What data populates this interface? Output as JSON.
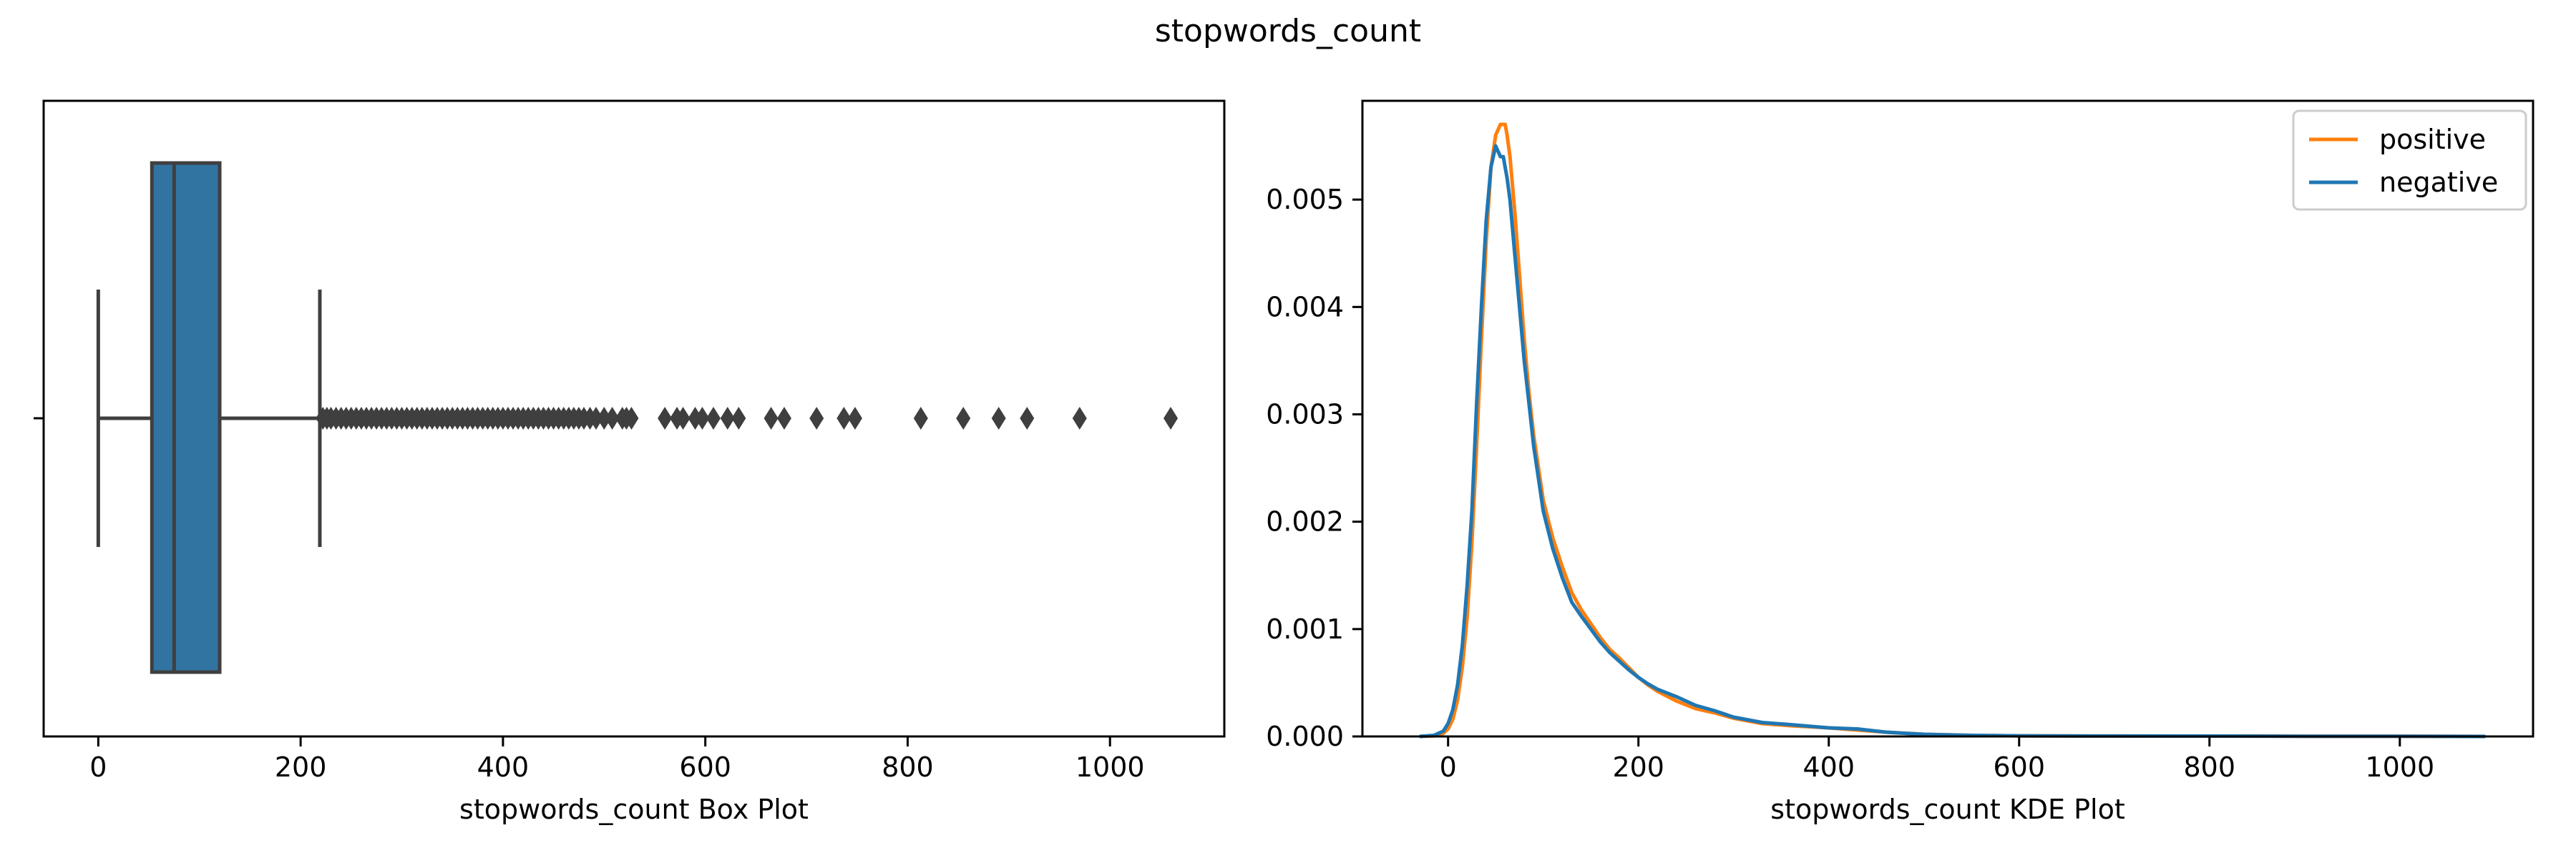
{
  "figure": {
    "title": "stopwords_count"
  },
  "chart_data": [
    {
      "type": "box",
      "title": "",
      "xlabel": "stopwords_count Box Plot",
      "ylabel": "",
      "xlim": [
        -54,
        1113
      ],
      "xticks": [
        0,
        200,
        400,
        600,
        800,
        1000
      ],
      "xtick_labels": [
        "0",
        "200",
        "400",
        "600",
        "800",
        "1000"
      ],
      "box": {
        "whisker_low": 0,
        "q1": 53,
        "median": 75,
        "q3": 120,
        "whisker_high": 219
      },
      "outliers": [
        222,
        226,
        230,
        235,
        240,
        245,
        250,
        255,
        260,
        265,
        270,
        275,
        280,
        285,
        290,
        295,
        300,
        305,
        310,
        315,
        320,
        325,
        330,
        335,
        340,
        345,
        350,
        355,
        360,
        365,
        370,
        375,
        380,
        385,
        390,
        395,
        400,
        405,
        410,
        415,
        420,
        425,
        430,
        435,
        440,
        445,
        450,
        455,
        460,
        465,
        470,
        475,
        480,
        486,
        492,
        500,
        508,
        518,
        522,
        527,
        560,
        572,
        578,
        590,
        597,
        608,
        622,
        633,
        665,
        678,
        710,
        737,
        748,
        813,
        855,
        890,
        918,
        970,
        1060
      ],
      "color": "#3274a1",
      "line_color": "#3f3f3f",
      "grid": false
    },
    {
      "type": "line",
      "title": "",
      "xlabel": "stopwords_count KDE Plot",
      "ylabel": "",
      "xlim": [
        -90,
        1140
      ],
      "ylim": [
        0,
        0.00592
      ],
      "xticks": [
        0,
        200,
        400,
        600,
        800,
        1000
      ],
      "xtick_labels": [
        "0",
        "200",
        "400",
        "600",
        "800",
        "1000"
      ],
      "yticks": [
        0,
        0.001,
        0.002,
        0.003,
        0.004,
        0.005
      ],
      "ytick_labels": [
        "0.000",
        "0.001",
        "0.002",
        "0.003",
        "0.004",
        "0.005"
      ],
      "legend_position": "top-right",
      "grid": false,
      "series": [
        {
          "name": "positive",
          "color": "#ff7f0e",
          "x": [
            -30,
            -15,
            -5,
            0,
            5,
            10,
            15,
            20,
            25,
            30,
            35,
            40,
            45,
            50,
            55,
            58,
            60,
            62,
            65,
            70,
            75,
            80,
            85,
            90,
            95,
            100,
            110,
            120,
            130,
            140,
            150,
            160,
            170,
            180,
            190,
            200,
            210,
            220,
            240,
            260,
            280,
            300,
            330,
            360,
            400,
            430,
            460,
            500,
            550,
            600,
            700,
            800,
            900,
            1000,
            1090
          ],
          "y": [
            0,
            5e-06,
            3e-05,
            7e-05,
            0.00016,
            0.00034,
            0.00065,
            0.0011,
            0.0018,
            0.0027,
            0.0037,
            0.0046,
            0.0053,
            0.0056,
            0.0057,
            0.0057,
            0.0057,
            0.0056,
            0.0054,
            0.0049,
            0.0043,
            0.0037,
            0.0032,
            0.0028,
            0.0025,
            0.0022,
            0.00185,
            0.00158,
            0.00134,
            0.00118,
            0.00105,
            0.00092,
            0.00081,
            0.00073,
            0.00064,
            0.00055,
            0.00048,
            0.00042,
            0.00033,
            0.00026,
            0.00022,
            0.00017,
            0.00012,
            0.0001,
            8e-05,
            6e-05,
            4e-05,
            2e-05,
            1e-05,
            6e-06,
            4e-06,
            3e-06,
            2e-06,
            1e-06,
            0
          ]
        },
        {
          "name": "negative",
          "color": "#1f77b4",
          "x": [
            -30,
            -15,
            -5,
            0,
            5,
            10,
            15,
            20,
            25,
            30,
            35,
            40,
            45,
            50,
            55,
            58,
            60,
            62,
            65,
            70,
            75,
            80,
            85,
            90,
            95,
            100,
            110,
            120,
            130,
            140,
            150,
            160,
            170,
            180,
            190,
            200,
            210,
            220,
            240,
            260,
            280,
            300,
            330,
            360,
            400,
            430,
            460,
            500,
            550,
            600,
            700,
            800,
            900,
            1000,
            1090
          ],
          "y": [
            0,
            1e-05,
            5e-05,
            0.00012,
            0.00025,
            0.00048,
            0.00085,
            0.0014,
            0.0021,
            0.0031,
            0.004,
            0.0048,
            0.0053,
            0.0055,
            0.0054,
            0.0054,
            0.0053,
            0.0052,
            0.005,
            0.0045,
            0.004,
            0.0035,
            0.0031,
            0.0027,
            0.0024,
            0.0021,
            0.00175,
            0.00148,
            0.00125,
            0.00112,
            0.001,
            0.00088,
            0.00078,
            0.0007,
            0.00062,
            0.00055,
            0.00049,
            0.00044,
            0.00037,
            0.00029,
            0.00024,
            0.00018,
            0.00013,
            0.00011,
            8e-05,
            7e-05,
            4e-05,
            2e-05,
            1e-05,
            6e-06,
            4e-06,
            3e-06,
            2e-06,
            1e-06,
            0
          ]
        }
      ]
    }
  ]
}
